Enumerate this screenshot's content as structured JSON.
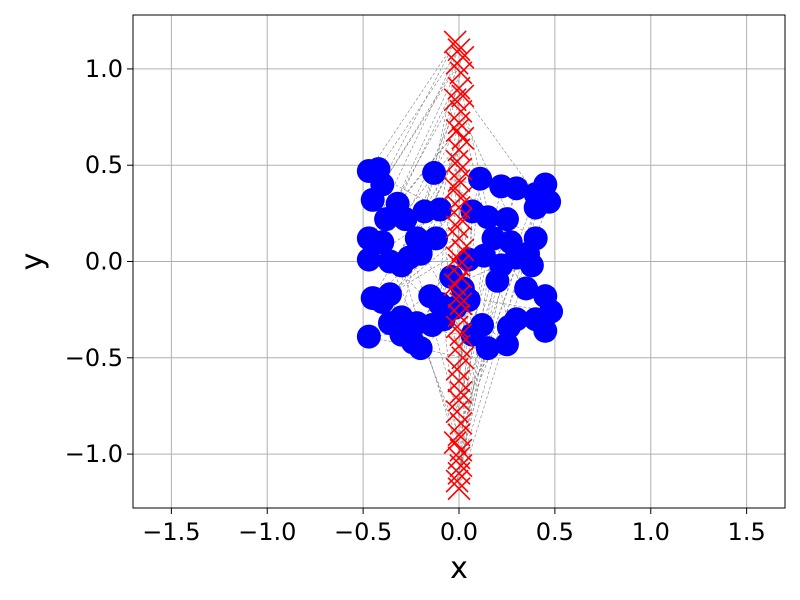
{
  "chart_data": {
    "type": "scatter",
    "xlabel": "x",
    "ylabel": "y",
    "xlim": [
      -1.7,
      1.7
    ],
    "ylim": [
      -1.28,
      1.28
    ],
    "grid": true,
    "x_ticks": [
      -1.5,
      -1.0,
      -0.5,
      0.0,
      0.5,
      1.0,
      1.5
    ],
    "y_ticks": [
      -1.0,
      -0.5,
      0.0,
      0.5,
      1.0
    ],
    "x_tick_labels": [
      "−1.5",
      "−1.0",
      "−0.5",
      "0.0",
      "0.5",
      "1.0",
      "1.5"
    ],
    "y_tick_labels": [
      "−1.0",
      "−0.5",
      "0.0",
      "0.5",
      "1.0"
    ],
    "colors": {
      "circles": "#0000ff",
      "crosses": "#ff0000",
      "links": "#808080",
      "grid": "#b0b0b0"
    },
    "series": [
      {
        "marker": "circle",
        "color": "#0000ff",
        "points": [
          [
            -0.47,
            0.47
          ],
          [
            -0.42,
            0.48
          ],
          [
            -0.4,
            0.4
          ],
          [
            -0.45,
            0.32
          ],
          [
            -0.32,
            0.3
          ],
          [
            -0.38,
            0.22
          ],
          [
            -0.28,
            0.22
          ],
          [
            -0.18,
            0.26
          ],
          [
            -0.1,
            0.27
          ],
          [
            -0.13,
            0.46
          ],
          [
            -0.47,
            0.12
          ],
          [
            -0.4,
            0.1
          ],
          [
            -0.22,
            0.12
          ],
          [
            -0.12,
            0.12
          ],
          [
            -0.2,
            0.04
          ],
          [
            -0.26,
            0.02
          ],
          [
            -0.36,
            0.0
          ],
          [
            -0.47,
            0.01
          ],
          [
            -0.3,
            -0.02
          ],
          [
            -0.45,
            -0.19
          ],
          [
            -0.4,
            -0.21
          ],
          [
            -0.36,
            -0.17
          ],
          [
            -0.15,
            -0.18
          ],
          [
            -0.1,
            -0.22
          ],
          [
            -0.3,
            -0.29
          ],
          [
            -0.22,
            -0.32
          ],
          [
            -0.14,
            -0.33
          ],
          [
            -0.3,
            -0.38
          ],
          [
            -0.24,
            -0.42
          ],
          [
            -0.2,
            -0.45
          ],
          [
            -0.47,
            -0.39
          ],
          [
            -0.36,
            -0.32
          ],
          [
            -0.08,
            -0.3
          ],
          [
            -0.02,
            -0.24
          ],
          [
            0.05,
            -0.2
          ],
          [
            0.11,
            0.43
          ],
          [
            0.22,
            0.39
          ],
          [
            0.3,
            0.38
          ],
          [
            0.4,
            0.35
          ],
          [
            0.45,
            0.4
          ],
          [
            0.47,
            0.31
          ],
          [
            0.4,
            0.28
          ],
          [
            0.25,
            0.22
          ],
          [
            0.15,
            0.23
          ],
          [
            0.07,
            0.26
          ],
          [
            0.18,
            0.12
          ],
          [
            0.27,
            0.1
          ],
          [
            0.4,
            0.12
          ],
          [
            0.36,
            0.04
          ],
          [
            0.3,
            0.02
          ],
          [
            0.13,
            0.03
          ],
          [
            0.22,
            -0.02
          ],
          [
            0.38,
            -0.02
          ],
          [
            0.2,
            -0.1
          ],
          [
            0.35,
            -0.14
          ],
          [
            0.45,
            -0.18
          ],
          [
            0.48,
            -0.26
          ],
          [
            0.4,
            -0.3
          ],
          [
            0.3,
            -0.3
          ],
          [
            0.26,
            -0.34
          ],
          [
            0.12,
            -0.33
          ],
          [
            0.07,
            -0.38
          ],
          [
            0.15,
            -0.45
          ],
          [
            0.25,
            -0.43
          ],
          [
            0.45,
            -0.36
          ],
          [
            0.05,
            0.01
          ],
          [
            -0.04,
            -0.08
          ],
          [
            0.02,
            -0.14
          ]
        ]
      },
      {
        "marker": "x",
        "color": "#ff0000",
        "points": [
          [
            -0.02,
            1.14
          ],
          [
            0.0,
            1.1
          ],
          [
            0.02,
            1.06
          ],
          [
            -0.01,
            1.03
          ],
          [
            0.01,
            0.98
          ],
          [
            0.0,
            0.9
          ],
          [
            0.02,
            0.86
          ],
          [
            -0.02,
            0.84
          ],
          [
            0.01,
            0.78
          ],
          [
            0.0,
            0.72
          ],
          [
            -0.01,
            0.68
          ],
          [
            0.02,
            0.64
          ],
          [
            0.0,
            0.58
          ],
          [
            -0.01,
            0.52
          ],
          [
            0.01,
            0.48
          ],
          [
            0.0,
            0.42
          ],
          [
            -0.02,
            0.38
          ],
          [
            0.01,
            0.33
          ],
          [
            0.0,
            0.28
          ],
          [
            0.01,
            0.22
          ],
          [
            -0.01,
            0.18
          ],
          [
            0.0,
            0.12
          ],
          [
            0.02,
            0.06
          ],
          [
            -0.01,
            0.02
          ],
          [
            0.0,
            -0.02
          ],
          [
            0.01,
            -0.08
          ],
          [
            -0.02,
            -0.12
          ],
          [
            0.0,
            -0.18
          ],
          [
            0.01,
            -0.22
          ],
          [
            0.0,
            -0.28
          ],
          [
            -0.01,
            -0.34
          ],
          [
            0.01,
            -0.38
          ],
          [
            0.0,
            -0.44
          ],
          [
            0.02,
            -0.5
          ],
          [
            -0.01,
            -0.56
          ],
          [
            0.0,
            -0.62
          ],
          [
            0.01,
            -0.68
          ],
          [
            0.0,
            -0.72
          ],
          [
            -0.01,
            -0.78
          ],
          [
            0.01,
            -0.84
          ],
          [
            0.0,
            -0.9
          ],
          [
            -0.02,
            -0.94
          ],
          [
            0.01,
            -0.98
          ],
          [
            0.0,
            -1.02
          ],
          [
            0.01,
            -1.06
          ],
          [
            0.0,
            -1.1
          ],
          [
            -0.01,
            -1.14
          ],
          [
            0.0,
            -1.18
          ]
        ]
      }
    ]
  }
}
